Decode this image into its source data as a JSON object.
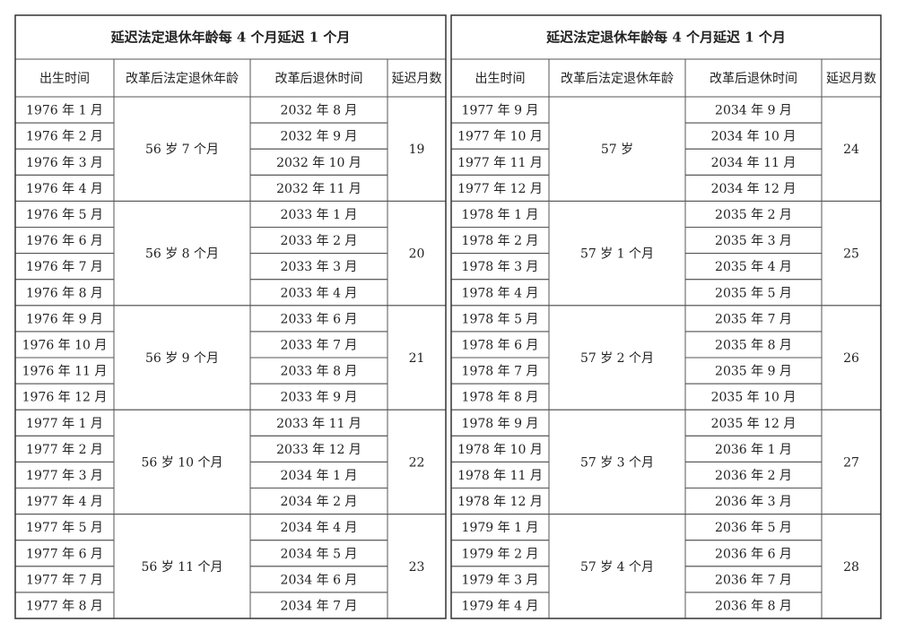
{
  "tables": [
    {
      "title": "延迟法定退休年龄每 4 个月延迟 1 个月",
      "headers": [
        "出生时间",
        "改革后法定退休年龄",
        "改革后退休时间",
        "延迟月数"
      ],
      "groups": [
        {
          "age": "56 岁 7 个月",
          "delay": "19",
          "rows": [
            {
              "birth": "1976 年 1 月",
              "retire": "2032 年 8 月"
            },
            {
              "birth": "1976 年 2 月",
              "retire": "2032 年 9 月"
            },
            {
              "birth": "1976 年 3 月",
              "retire": "2032 年 10 月"
            },
            {
              "birth": "1976 年 4 月",
              "retire": "2032 年 11 月"
            }
          ]
        },
        {
          "age": "56 岁 8 个月",
          "delay": "20",
          "rows": [
            {
              "birth": "1976 年 5 月",
              "retire": "2033 年 1 月"
            },
            {
              "birth": "1976 年 6 月",
              "retire": "2033 年 2 月"
            },
            {
              "birth": "1976 年 7 月",
              "retire": "2033 年 3 月"
            },
            {
              "birth": "1976 年 8 月",
              "retire": "2033 年 4 月"
            }
          ]
        },
        {
          "age": "56 岁 9 个月",
          "delay": "21",
          "rows": [
            {
              "birth": "1976 年 9 月",
              "retire": "2033 年 6 月"
            },
            {
              "birth": "1976 年 10 月",
              "retire": "2033 年 7 月"
            },
            {
              "birth": "1976 年 11 月",
              "retire": "2033 年 8 月"
            },
            {
              "birth": "1976 年 12 月",
              "retire": "2033 年 9 月"
            }
          ]
        },
        {
          "age": "56 岁 10 个月",
          "delay": "22",
          "rows": [
            {
              "birth": "1977 年 1 月",
              "retire": "2033 年 11 月"
            },
            {
              "birth": "1977 年 2 月",
              "retire": "2033 年 12 月"
            },
            {
              "birth": "1977 年 3 月",
              "retire": "2034 年 1 月"
            },
            {
              "birth": "1977 年 4 月",
              "retire": "2034 年 2 月"
            }
          ]
        },
        {
          "age": "56 岁 11 个月",
          "delay": "23",
          "rows": [
            {
              "birth": "1977 年 5 月",
              "retire": "2034 年 4 月"
            },
            {
              "birth": "1977 年 6 月",
              "retire": "2034 年 5 月"
            },
            {
              "birth": "1977 年 7 月",
              "retire": "2034 年 6 月"
            },
            {
              "birth": "1977 年 8 月",
              "retire": "2034 年 7 月"
            }
          ]
        }
      ]
    },
    {
      "title": "延迟法定退休年龄每 4 个月延迟 1 个月",
      "headers": [
        "出生时间",
        "改革后法定退休年龄",
        "改革后退休时间",
        "延迟月数"
      ],
      "groups": [
        {
          "age": "57 岁",
          "delay": "24",
          "rows": [
            {
              "birth": "1977 年 9 月",
              "retire": "2034 年 9 月"
            },
            {
              "birth": "1977 年 10 月",
              "retire": "2034 年 10 月"
            },
            {
              "birth": "1977 年 11 月",
              "retire": "2034 年 11 月"
            },
            {
              "birth": "1977 年 12 月",
              "retire": "2034 年 12 月"
            }
          ]
        },
        {
          "age": "57 岁 1 个月",
          "delay": "25",
          "rows": [
            {
              "birth": "1978 年 1 月",
              "retire": "2035 年 2 月"
            },
            {
              "birth": "1978 年 2 月",
              "retire": "2035 年 3 月"
            },
            {
              "birth": "1978 年 3 月",
              "retire": "2035 年 4 月"
            },
            {
              "birth": "1978 年 4 月",
              "retire": "2035 年 5 月"
            }
          ]
        },
        {
          "age": "57 岁 2 个月",
          "delay": "26",
          "rows": [
            {
              "birth": "1978 年 5 月",
              "retire": "2035 年 7 月"
            },
            {
              "birth": "1978 年 6 月",
              "retire": "2035 年 8 月"
            },
            {
              "birth": "1978 年 7 月",
              "retire": "2035 年 9 月"
            },
            {
              "birth": "1978 年 8 月",
              "retire": "2035 年 10 月"
            }
          ]
        },
        {
          "age": "57 岁 3 个月",
          "delay": "27",
          "rows": [
            {
              "birth": "1978 年 9 月",
              "retire": "2035 年 12 月"
            },
            {
              "birth": "1978 年 10 月",
              "retire": "2036 年 1 月"
            },
            {
              "birth": "1978 年 11 月",
              "retire": "2036 年 2 月"
            },
            {
              "birth": "1978 年 12 月",
              "retire": "2036 年 3 月"
            }
          ]
        },
        {
          "age": "57 岁 4 个月",
          "delay": "28",
          "rows": [
            {
              "birth": "1979 年 1 月",
              "retire": "2036 年 5 月"
            },
            {
              "birth": "1979 年 2 月",
              "retire": "2036 年 6 月"
            },
            {
              "birth": "1979 年 3 月",
              "retire": "2036 年 7 月"
            },
            {
              "birth": "1979 年 4 月",
              "retire": "2036 年 8 月"
            }
          ]
        }
      ]
    }
  ]
}
